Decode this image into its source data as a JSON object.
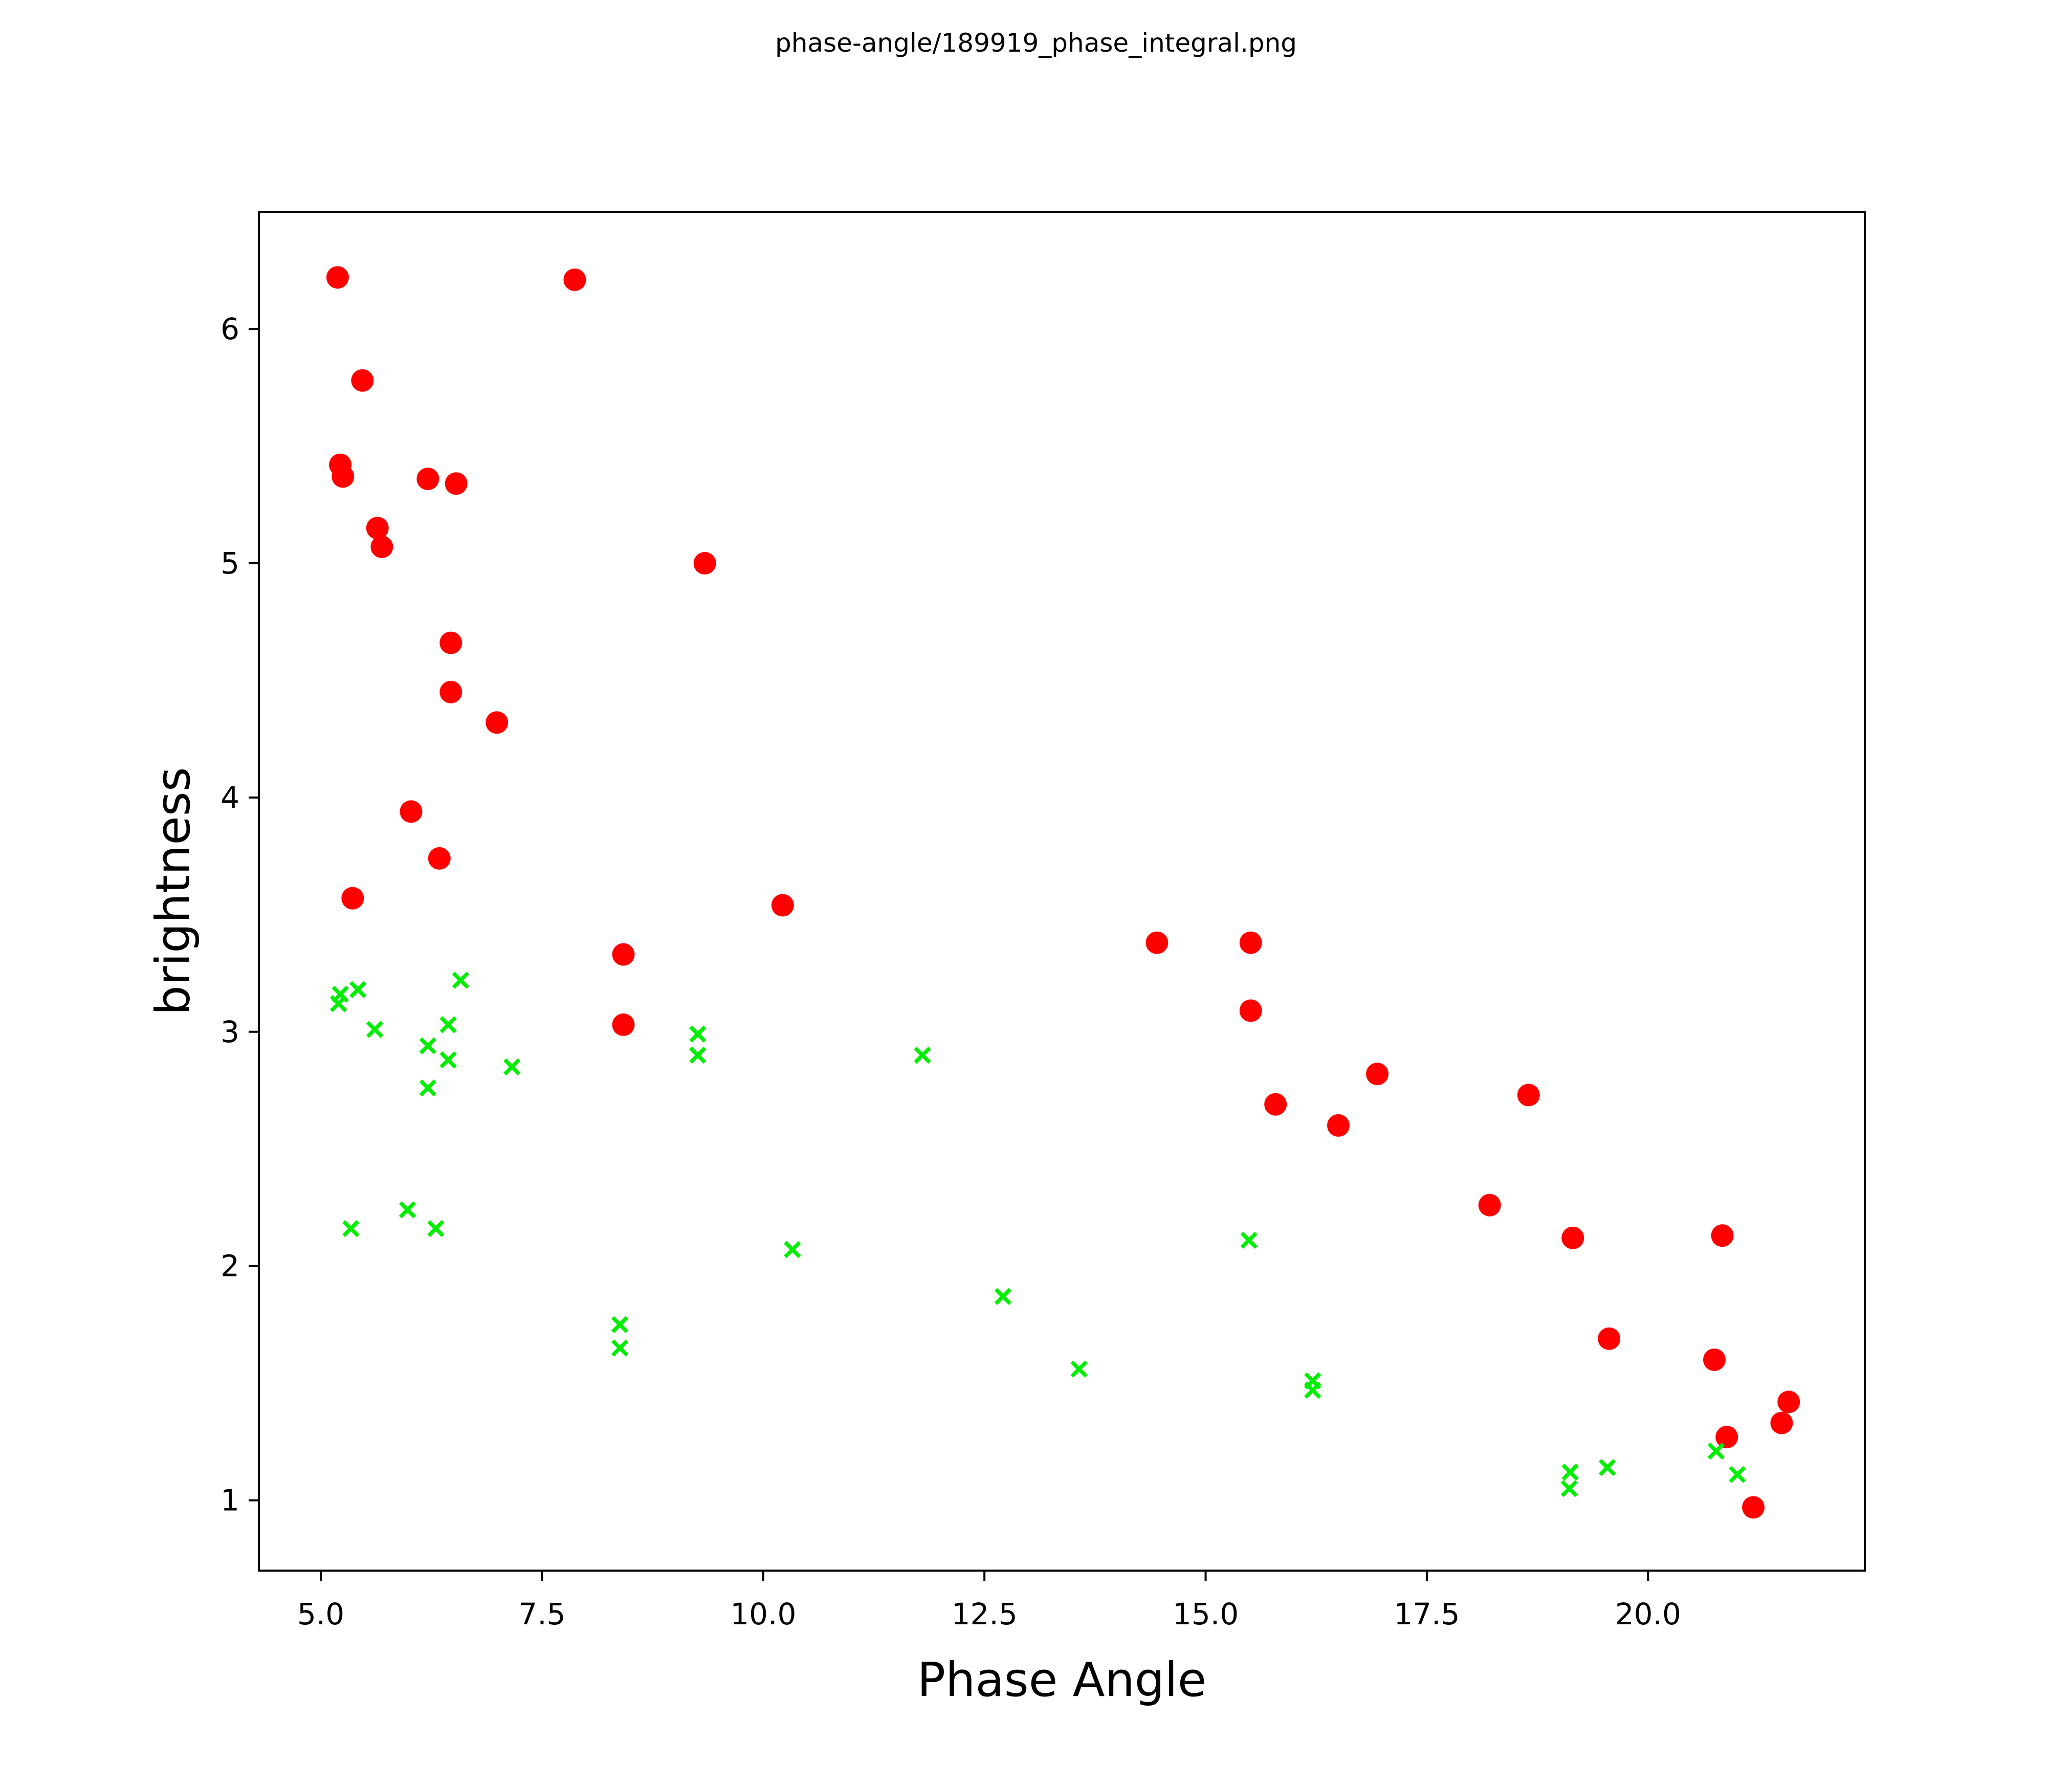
{
  "title": "phase-angle/189919_phase_integral.png",
  "chart_data": {
    "type": "scatter",
    "title": "phase-angle/189919_phase_integral.png",
    "xlabel": "Phase Angle",
    "ylabel": "brightness",
    "xlim": [
      4.3,
      22.45
    ],
    "ylim": [
      0.7,
      6.5
    ],
    "grid": false,
    "legend": false,
    "x_ticks": {
      "values": [
        5.0,
        7.5,
        10.0,
        12.5,
        15.0,
        17.5,
        20.0
      ],
      "labels": [
        "5.0",
        "7.5",
        "10.0",
        "12.5",
        "15.0",
        "17.5",
        "20.0"
      ]
    },
    "y_ticks": {
      "values": [
        1,
        2,
        3,
        4,
        5,
        6
      ],
      "labels": [
        "1",
        "2",
        "3",
        "4",
        "5",
        "6"
      ]
    },
    "series": [
      {
        "name": "red-circles",
        "marker": "circle",
        "color": "#ff0000",
        "points": [
          [
            5.19,
            6.22
          ],
          [
            7.87,
            6.21
          ],
          [
            5.47,
            5.78
          ],
          [
            5.22,
            5.42
          ],
          [
            5.25,
            5.37
          ],
          [
            6.21,
            5.36
          ],
          [
            6.53,
            5.34
          ],
          [
            5.64,
            5.15
          ],
          [
            5.69,
            5.07
          ],
          [
            9.34,
            5.0
          ],
          [
            6.47,
            4.66
          ],
          [
            6.47,
            4.45
          ],
          [
            6.99,
            4.32
          ],
          [
            6.02,
            3.94
          ],
          [
            6.34,
            3.74
          ],
          [
            5.36,
            3.57
          ],
          [
            10.22,
            3.54
          ],
          [
            8.42,
            3.33
          ],
          [
            8.42,
            3.03
          ],
          [
            14.45,
            3.38
          ],
          [
            15.51,
            3.38
          ],
          [
            15.51,
            3.09
          ],
          [
            16.94,
            2.82
          ],
          [
            15.79,
            2.69
          ],
          [
            16.5,
            2.6
          ],
          [
            18.65,
            2.73
          ],
          [
            18.21,
            2.26
          ],
          [
            19.15,
            2.12
          ],
          [
            20.84,
            2.13
          ],
          [
            19.56,
            1.69
          ],
          [
            20.75,
            1.6
          ],
          [
            21.59,
            1.42
          ],
          [
            21.51,
            1.33
          ],
          [
            20.89,
            1.27
          ],
          [
            21.19,
            0.97
          ]
        ]
      },
      {
        "name": "green-crosses",
        "marker": "x",
        "color": "#00ee00",
        "points": [
          [
            5.22,
            3.16
          ],
          [
            5.42,
            3.18
          ],
          [
            5.2,
            3.12
          ],
          [
            6.58,
            3.22
          ],
          [
            5.61,
            3.01
          ],
          [
            6.44,
            3.03
          ],
          [
            6.21,
            2.94
          ],
          [
            6.44,
            2.88
          ],
          [
            7.16,
            2.85
          ],
          [
            6.21,
            2.76
          ],
          [
            9.26,
            2.99
          ],
          [
            9.26,
            2.9
          ],
          [
            11.8,
            2.9
          ],
          [
            5.98,
            2.24
          ],
          [
            5.34,
            2.16
          ],
          [
            6.3,
            2.16
          ],
          [
            10.33,
            2.07
          ],
          [
            15.49,
            2.11
          ],
          [
            12.71,
            1.87
          ],
          [
            8.38,
            1.75
          ],
          [
            8.38,
            1.65
          ],
          [
            13.57,
            1.56
          ],
          [
            16.21,
            1.51
          ],
          [
            16.21,
            1.47
          ],
          [
            20.77,
            1.21
          ],
          [
            19.54,
            1.14
          ],
          [
            19.12,
            1.12
          ],
          [
            21.01,
            1.11
          ],
          [
            19.11,
            1.05
          ]
        ]
      }
    ]
  }
}
